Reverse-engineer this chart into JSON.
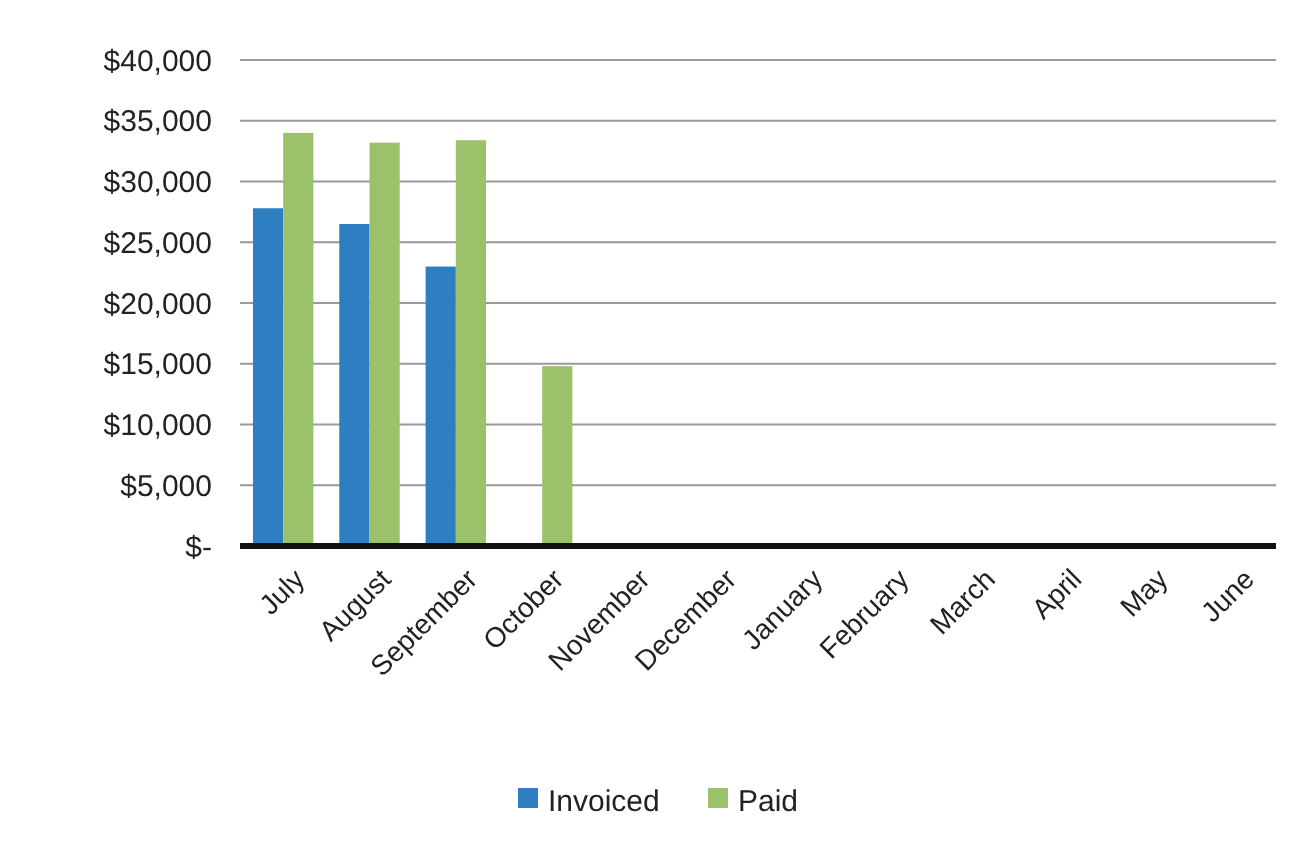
{
  "chart_data": {
    "type": "bar",
    "categories": [
      "July",
      "August",
      "September",
      "October",
      "November",
      "December",
      "January",
      "February",
      "March",
      "April",
      "May",
      "June"
    ],
    "series": [
      {
        "name": "Invoiced",
        "color": "#2e7fc1",
        "values": [
          27800,
          26500,
          23000,
          null,
          null,
          null,
          null,
          null,
          null,
          null,
          null,
          null
        ]
      },
      {
        "name": "Paid",
        "color": "#9bc26a",
        "values": [
          34000,
          33200,
          33400,
          14800,
          null,
          null,
          null,
          null,
          null,
          null,
          null,
          null
        ]
      }
    ],
    "ylim": [
      0,
      40000
    ],
    "yticks": [
      {
        "value": 0,
        "label": "$-"
      },
      {
        "value": 5000,
        "label": "$5,000"
      },
      {
        "value": 10000,
        "label": "$10,000"
      },
      {
        "value": 15000,
        "label": "$15,000"
      },
      {
        "value": 20000,
        "label": "$20,000"
      },
      {
        "value": 25000,
        "label": "$25,000"
      },
      {
        "value": 30000,
        "label": "$30,000"
      },
      {
        "value": 35000,
        "label": "$35,000"
      },
      {
        "value": 40000,
        "label": "$40,000"
      }
    ],
    "grid": "y",
    "legend": "bottom"
  }
}
